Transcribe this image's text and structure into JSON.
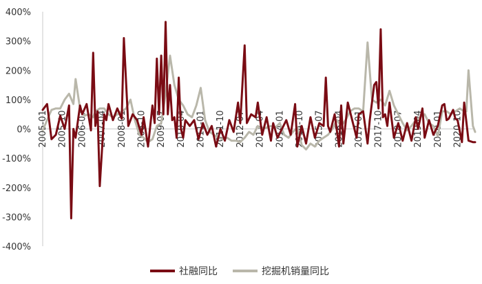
{
  "chart_data": {
    "type": "line",
    "title": "",
    "xlabel": "",
    "ylabel": "",
    "ylim": [
      -4,
      4
    ],
    "y_ticks": [
      4,
      3,
      2,
      1,
      0,
      -1,
      -2,
      -3,
      -4
    ],
    "y_tick_labels": [
      "400%",
      "300%",
      "200%",
      "100%",
      "0%",
      "-100%",
      "-200%",
      "-300%",
      "-400%"
    ],
    "x_start": "2005-01",
    "x_end": "2021-06",
    "x_tick_labels": [
      "2005-01",
      "2005-10",
      "2006-07",
      "2007-04",
      "2008-01",
      "2008-10",
      "2009-07",
      "2010-04",
      "2011-01",
      "2011-10",
      "2012-07",
      "2013-04",
      "2014-01",
      "2014-10",
      "2015-07",
      "2016-04",
      "2017-01",
      "2017-10",
      "2018-07",
      "2019-04",
      "2020-01",
      "2020-10"
    ],
    "legend_position": "bottom-center",
    "grid": false,
    "series": [
      {
        "name": "社融同比",
        "color": "#7a0c14",
        "points": [
          [
            "2005-01",
            0.65
          ],
          [
            "2005-03",
            0.85
          ],
          [
            "2005-05",
            -0.35
          ],
          [
            "2005-07",
            -0.2
          ],
          [
            "2005-09",
            0.45
          ],
          [
            "2005-11",
            0.0
          ],
          [
            "2006-01",
            0.8
          ],
          [
            "2006-02",
            -3.05
          ],
          [
            "2006-03",
            0.0
          ],
          [
            "2006-04",
            -0.3
          ],
          [
            "2006-06",
            0.8
          ],
          [
            "2006-07",
            0.5
          ],
          [
            "2006-09",
            0.85
          ],
          [
            "2006-11",
            -0.05
          ],
          [
            "2006-12",
            2.6
          ],
          [
            "2007-01",
            0.1
          ],
          [
            "2007-02",
            0.6
          ],
          [
            "2007-03",
            -1.95
          ],
          [
            "2007-05",
            0.5
          ],
          [
            "2007-06",
            0.3
          ],
          [
            "2007-07",
            0.85
          ],
          [
            "2007-09",
            0.3
          ],
          [
            "2007-11",
            0.7
          ],
          [
            "2008-01",
            0.35
          ],
          [
            "2008-02",
            3.1
          ],
          [
            "2008-04",
            0.1
          ],
          [
            "2008-06",
            0.5
          ],
          [
            "2008-08",
            0.3
          ],
          [
            "2008-10",
            -0.2
          ],
          [
            "2008-11",
            0.4
          ],
          [
            "2009-01",
            -0.6
          ],
          [
            "2009-03",
            0.8
          ],
          [
            "2009-04",
            0.2
          ],
          [
            "2009-05",
            2.4
          ],
          [
            "2009-06",
            0.5
          ],
          [
            "2009-07",
            2.5
          ],
          [
            "2009-08",
            0.5
          ],
          [
            "2009-09",
            3.65
          ],
          [
            "2009-10",
            0.5
          ],
          [
            "2009-11",
            1.5
          ],
          [
            "2009-12",
            0.3
          ],
          [
            "2010-01",
            0.4
          ],
          [
            "2010-02",
            -0.3
          ],
          [
            "2010-03",
            1.75
          ],
          [
            "2010-04",
            0.0
          ],
          [
            "2010-05",
            -0.3
          ],
          [
            "2010-06",
            0.3
          ],
          [
            "2010-08",
            0.1
          ],
          [
            "2010-10",
            0.3
          ],
          [
            "2010-12",
            -0.35
          ],
          [
            "2011-02",
            0.2
          ],
          [
            "2011-04",
            -0.2
          ],
          [
            "2011-06",
            0.1
          ],
          [
            "2011-08",
            -0.6
          ],
          [
            "2011-10",
            0.0
          ],
          [
            "2011-12",
            -0.4
          ],
          [
            "2012-02",
            0.3
          ],
          [
            "2012-04",
            -0.1
          ],
          [
            "2012-06",
            0.9
          ],
          [
            "2012-07",
            0.2
          ],
          [
            "2012-09",
            2.85
          ],
          [
            "2012-10",
            0.2
          ],
          [
            "2012-12",
            0.5
          ],
          [
            "2013-02",
            0.4
          ],
          [
            "2013-03",
            0.9
          ],
          [
            "2013-05",
            -0.2
          ],
          [
            "2013-07",
            0.4
          ],
          [
            "2013-09",
            -0.4
          ],
          [
            "2013-10",
            0.2
          ],
          [
            "2013-12",
            -0.3
          ],
          [
            "2014-02",
            0.0
          ],
          [
            "2014-04",
            0.3
          ],
          [
            "2014-06",
            -0.2
          ],
          [
            "2014-08",
            0.85
          ],
          [
            "2014-09",
            -0.6
          ],
          [
            "2014-11",
            0.1
          ],
          [
            "2015-01",
            -0.5
          ],
          [
            "2015-03",
            0.4
          ],
          [
            "2015-05",
            -0.3
          ],
          [
            "2015-07",
            0.2
          ],
          [
            "2015-09",
            0.1
          ],
          [
            "2015-10",
            1.75
          ],
          [
            "2015-11",
            0.1
          ],
          [
            "2015-12",
            -0.1
          ],
          [
            "2016-02",
            0.5
          ],
          [
            "2016-04",
            -0.6
          ],
          [
            "2016-05",
            0.8
          ],
          [
            "2016-06",
            -0.5
          ],
          [
            "2016-08",
            0.9
          ],
          [
            "2016-10",
            0.3
          ],
          [
            "2016-12",
            -0.3
          ],
          [
            "2017-01",
            0.5
          ],
          [
            "2017-03",
            0.6
          ],
          [
            "2017-05",
            -0.5
          ],
          [
            "2017-06",
            0.3
          ],
          [
            "2017-08",
            1.5
          ],
          [
            "2017-09",
            1.6
          ],
          [
            "2017-10",
            0.7
          ],
          [
            "2017-11",
            3.4
          ],
          [
            "2017-12",
            0.4
          ],
          [
            "2018-01",
            0.5
          ],
          [
            "2018-02",
            0.1
          ],
          [
            "2018-03",
            0.9
          ],
          [
            "2018-05",
            -0.3
          ],
          [
            "2018-07",
            0.2
          ],
          [
            "2018-09",
            -0.4
          ],
          [
            "2018-11",
            0.2
          ],
          [
            "2019-01",
            -0.4
          ],
          [
            "2019-03",
            0.4
          ],
          [
            "2019-04",
            0.0
          ],
          [
            "2019-06",
            0.7
          ],
          [
            "2019-07",
            -0.3
          ],
          [
            "2019-09",
            0.3
          ],
          [
            "2019-11",
            -0.2
          ],
          [
            "2020-01",
            0.1
          ],
          [
            "2020-03",
            0.8
          ],
          [
            "2020-04",
            0.85
          ],
          [
            "2020-05",
            0.3
          ],
          [
            "2020-06",
            0.35
          ],
          [
            "2020-08",
            0.65
          ],
          [
            "2020-09",
            0.35
          ],
          [
            "2020-10",
            0.3
          ],
          [
            "2020-12",
            -0.45
          ],
          [
            "2021-01",
            0.9
          ],
          [
            "2021-03",
            -0.4
          ],
          [
            "2021-05",
            -0.45
          ],
          [
            "2021-06",
            -0.45
          ]
        ]
      },
      {
        "name": "挖掘机销量同比",
        "color": "#b9b7aa",
        "points": [
          [
            "2005-01",
            -0.05
          ],
          [
            "2005-03",
            0.3
          ],
          [
            "2005-05",
            0.65
          ],
          [
            "2005-07",
            0.7
          ],
          [
            "2005-09",
            0.7
          ],
          [
            "2005-11",
            1.0
          ],
          [
            "2006-01",
            1.2
          ],
          [
            "2006-03",
            0.85
          ],
          [
            "2006-04",
            1.7
          ],
          [
            "2006-06",
            0.7
          ],
          [
            "2006-08",
            0.45
          ],
          [
            "2006-10",
            0.5
          ],
          [
            "2006-12",
            0.4
          ],
          [
            "2007-01",
            0.6
          ],
          [
            "2007-03",
            0.7
          ],
          [
            "2007-05",
            0.7
          ],
          [
            "2007-07",
            0.5
          ],
          [
            "2007-09",
            0.4
          ],
          [
            "2007-11",
            0.5
          ],
          [
            "2008-01",
            0.6
          ],
          [
            "2008-03",
            0.7
          ],
          [
            "2008-05",
            1.0
          ],
          [
            "2008-07",
            0.3
          ],
          [
            "2008-09",
            -0.2
          ],
          [
            "2008-11",
            -0.3
          ],
          [
            "2009-01",
            -0.45
          ],
          [
            "2009-03",
            -0.35
          ],
          [
            "2009-05",
            0.1
          ],
          [
            "2009-07",
            0.2
          ],
          [
            "2009-09",
            1.2
          ],
          [
            "2009-11",
            2.5
          ],
          [
            "2010-01",
            1.5
          ],
          [
            "2010-03",
            1.0
          ],
          [
            "2010-05",
            0.8
          ],
          [
            "2010-07",
            0.5
          ],
          [
            "2010-09",
            0.4
          ],
          [
            "2010-11",
            0.8
          ],
          [
            "2011-01",
            1.4
          ],
          [
            "2011-03",
            0.3
          ],
          [
            "2011-05",
            -0.1
          ],
          [
            "2011-07",
            -0.2
          ],
          [
            "2011-09",
            -0.3
          ],
          [
            "2011-11",
            -0.35
          ],
          [
            "2012-01",
            -0.3
          ],
          [
            "2012-03",
            -0.4
          ],
          [
            "2012-05",
            -0.4
          ],
          [
            "2012-07",
            -0.45
          ],
          [
            "2012-09",
            -0.3
          ],
          [
            "2012-11",
            -0.1
          ],
          [
            "2013-01",
            -0.2
          ],
          [
            "2013-03",
            0.1
          ],
          [
            "2013-05",
            0.0
          ],
          [
            "2013-07",
            0.05
          ],
          [
            "2013-09",
            0.1
          ],
          [
            "2013-11",
            0.05
          ],
          [
            "2014-01",
            0.2
          ],
          [
            "2014-03",
            -0.2
          ],
          [
            "2014-05",
            -0.3
          ],
          [
            "2014-07",
            -0.1
          ],
          [
            "2014-09",
            0.05
          ],
          [
            "2014-11",
            -0.55
          ],
          [
            "2015-01",
            -0.7
          ],
          [
            "2015-03",
            -0.5
          ],
          [
            "2015-05",
            -0.6
          ],
          [
            "2015-07",
            -0.4
          ],
          [
            "2015-09",
            -0.3
          ],
          [
            "2015-11",
            -0.2
          ],
          [
            "2016-01",
            0.0
          ],
          [
            "2016-03",
            0.3
          ],
          [
            "2016-05",
            0.1
          ],
          [
            "2016-07",
            0.3
          ],
          [
            "2016-09",
            0.6
          ],
          [
            "2016-11",
            0.7
          ],
          [
            "2017-01",
            0.7
          ],
          [
            "2017-03",
            0.6
          ],
          [
            "2017-05",
            2.95
          ],
          [
            "2017-07",
            1.0
          ],
          [
            "2017-09",
            0.9
          ],
          [
            "2017-11",
            1.0
          ],
          [
            "2018-01",
            0.8
          ],
          [
            "2018-03",
            1.3
          ],
          [
            "2018-05",
            0.8
          ],
          [
            "2018-07",
            0.5
          ],
          [
            "2018-09",
            0.2
          ],
          [
            "2018-11",
            -0.05
          ],
          [
            "2019-01",
            0.1
          ],
          [
            "2019-03",
            0.3
          ],
          [
            "2019-05",
            0.4
          ],
          [
            "2019-07",
            0.5
          ],
          [
            "2019-09",
            0.2
          ],
          [
            "2019-11",
            0.1
          ],
          [
            "2020-01",
            -0.25
          ],
          [
            "2020-03",
            0.6
          ],
          [
            "2020-05",
            0.6
          ],
          [
            "2020-07",
            0.5
          ],
          [
            "2020-09",
            0.6
          ],
          [
            "2020-11",
            0.7
          ],
          [
            "2021-01",
            0.6
          ],
          [
            "2021-02",
            0.6
          ],
          [
            "2021-03",
            2.0
          ],
          [
            "2021-05",
            0.1
          ],
          [
            "2021-06",
            -0.1
          ]
        ]
      }
    ]
  }
}
